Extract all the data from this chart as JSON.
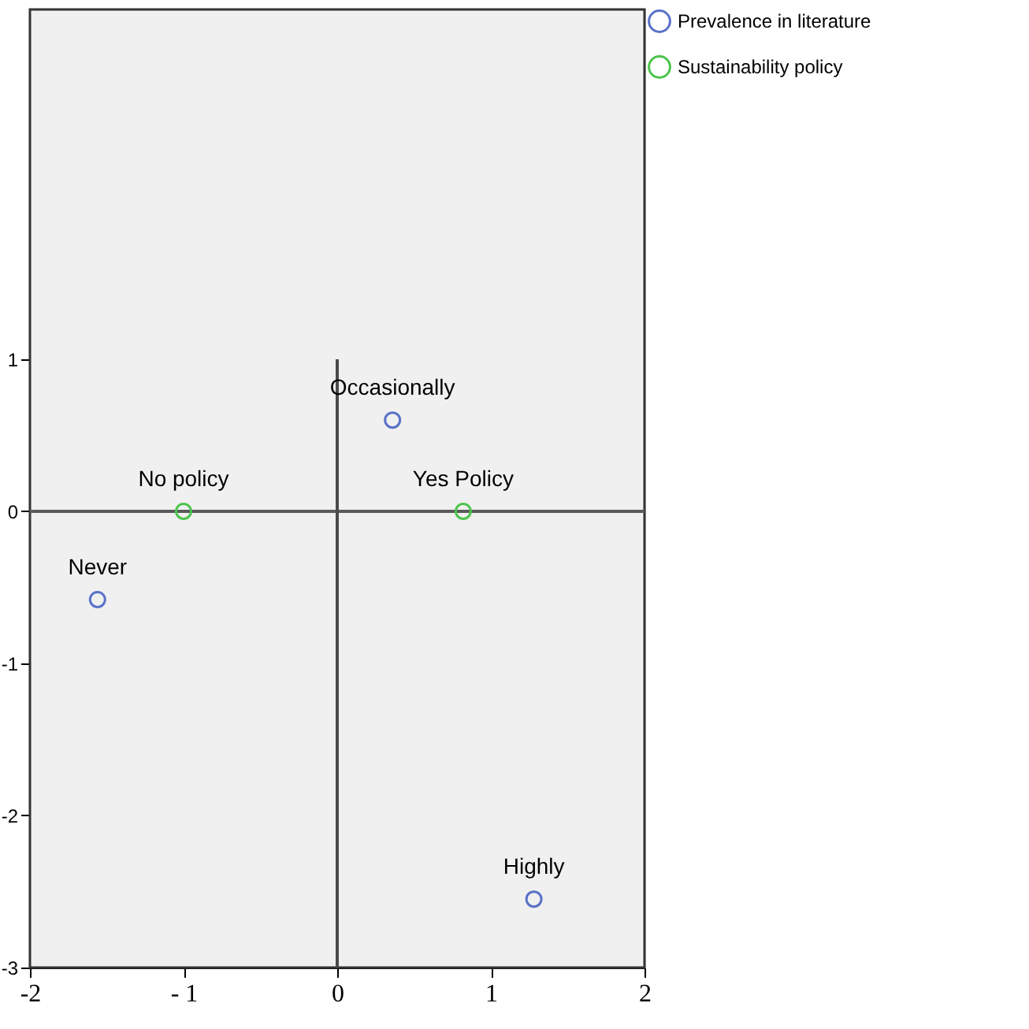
{
  "chart_data": {
    "type": "scatter",
    "xlim": [
      -2,
      2
    ],
    "ylim": [
      -3,
      3.3
    ],
    "xticks": [
      {
        "value": -2,
        "label": "-2"
      },
      {
        "value": -1,
        "label": "- 1"
      },
      0,
      1,
      2
    ],
    "yticks": [
      -3,
      -2,
      -1,
      0,
      1
    ],
    "series": [
      {
        "name": "Prevalence in literature",
        "color": "#5a72c8",
        "x": [
          -1.56,
          0.36,
          1.28
        ],
        "values": [
          -0.58,
          0.6,
          -2.55
        ]
      },
      {
        "name": "Sustainability policy",
        "color": "#4cc44c",
        "x": [
          -1.0,
          0.82
        ],
        "values": [
          0,
          0
        ]
      }
    ],
    "annotations": [
      {
        "text": "Never",
        "x": -1.56,
        "y": -0.58
      },
      {
        "text": "Occasionally",
        "x": 0.36,
        "y": 0.6
      },
      {
        "text": "Highly",
        "x": 1.28,
        "y": -2.55
      },
      {
        "text": "No policy",
        "x": -1.0,
        "y": 0
      },
      {
        "text": "Yes Policy",
        "x": 0.82,
        "y": 0
      }
    ],
    "ref_lines": [
      {
        "axis": "y",
        "value": 0,
        "color": "#5a5a5a"
      },
      {
        "axis": "x",
        "value": 0,
        "color": "#4a4a4a"
      }
    ],
    "marker": "circle",
    "legend": "top right"
  }
}
